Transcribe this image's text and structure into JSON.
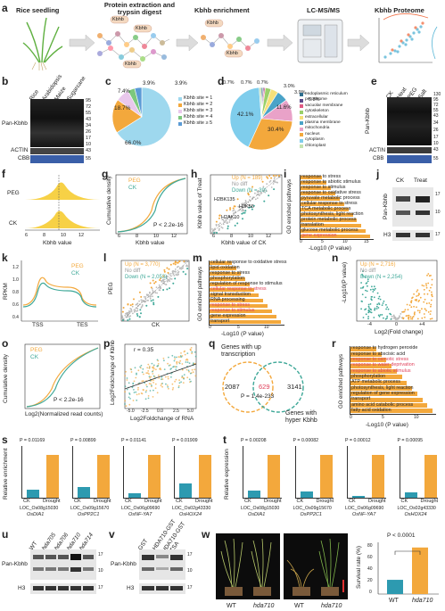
{
  "panels": {
    "a": {
      "letter": "a",
      "steps": [
        "Rice seedling",
        "Protein extraction and trypsin digest",
        "Kbhb enrichment",
        "LC-MS/MS",
        "Kbhb Proteome"
      ],
      "tag": "Kbhb"
    },
    "b": {
      "letter": "b",
      "lanes": [
        "Rice",
        "Arabidopsis",
        "Maize",
        "Sugarcane"
      ],
      "blot_label": "Pan-Kbhb",
      "actin": "ACTIN",
      "cbb": "CBB",
      "mw": [
        "95",
        "72",
        "55",
        "43",
        "34",
        "26",
        "17",
        "10",
        "43",
        "55"
      ]
    },
    "c": {
      "letter": "c",
      "legend": [
        "Kbhb site = 1",
        "Kbhb site = 2",
        "Kbhb site = 3",
        "Kbhb site = 4",
        "Kbhb site ≥ 5"
      ]
    },
    "d": {
      "letter": "d",
      "legend": [
        "endoplasmic reticulum",
        "peroxisome",
        "vacuolar membrane",
        "cytoskeleton",
        "extracellular",
        "plasma membrane",
        "mitochondria",
        "nucleus",
        "cytoplasm",
        "chloroplast"
      ]
    },
    "e": {
      "letter": "e",
      "lanes": [
        "CK",
        "Heat",
        "PEG",
        "Salt"
      ],
      "blot_label": "Pan-Kbhb",
      "actin": "ACTIN",
      "cbb": "CBB",
      "mw": [
        "130",
        "95",
        "72",
        "55",
        "43",
        "34",
        "26",
        "17",
        "10",
        "43",
        "55"
      ]
    },
    "f": {
      "letter": "f",
      "rows": [
        "PEG",
        "CK"
      ],
      "xlabel": "Kbhb value",
      "ticks": [
        "6",
        "8",
        "10",
        "12"
      ]
    },
    "g": {
      "letter": "g",
      "ylabel": "Cumulative density",
      "xlabel": "Kbhb value",
      "legend": [
        "PEG",
        "CK"
      ],
      "pval": "P < 2.2e-16",
      "xticks": [
        "6",
        "8",
        "10",
        "12"
      ],
      "yticks": [
        "0.0",
        "0.2",
        "0.4",
        "0.6",
        "0.8",
        "1.0"
      ]
    },
    "h": {
      "letter": "h",
      "ylabel": "Kbhb value of Treat",
      "xlabel": "Kbhb value of CK",
      "legend": [
        "Up (N = 189)",
        "No diff",
        "Down (N = 39)"
      ],
      "annotations": [
        "H2BK135",
        "H3K56",
        "H2AK10"
      ],
      "ticks": [
        "6",
        "8",
        "10",
        "12"
      ]
    },
    "i": {
      "letter": "i",
      "ylabel": "GO enriched pathways",
      "xlabel": "-Log10 (P value)",
      "terms": [
        "response to stress",
        "response to abiotic stimulus",
        "response to stimulus",
        "response to oxidative stress",
        "pyruvate metabolic process",
        "cellular response to stress",
        "TCA metabolic process",
        "photosynthesis, light reaction",
        "protein metabolic process",
        "translation",
        "glucose metabolic process",
        "gene expression"
      ],
      "ticks": [
        "0",
        "5",
        "10",
        "15"
      ]
    },
    "j": {
      "letter": "j",
      "lanes": [
        "CK",
        "Treat"
      ],
      "blot_label": "Pan-Kbhb",
      "h3": "H3",
      "mw": [
        "17",
        "10",
        "17"
      ]
    },
    "k": {
      "letter": "k",
      "ylabel": "RPKM",
      "legend": [
        "PEG",
        "CK"
      ],
      "xticks": [
        "TSS",
        "TES"
      ],
      "yticks": [
        "0.4",
        "0.6",
        "0.8",
        "1.0",
        "1.2"
      ]
    },
    "l": {
      "letter": "l",
      "ylabel": "PEG",
      "xlabel": "CK",
      "legend": [
        "Up (N = 3,770)",
        "No diff",
        "Down (N = 2,053)"
      ]
    },
    "m": {
      "letter": "m",
      "ylabel": "GO enriched pathways",
      "xlabel": "-Log10 (P value)",
      "terms": [
        "cellular response to oxidative stress",
        "lipid oxidation",
        "response to stress",
        "phosphorylation",
        "regulation of response to stimulus",
        "cellular response to stress",
        "signal transduction",
        "RNA processing",
        "response to stress",
        "response to stimulus",
        "gene expression",
        "transport"
      ],
      "ticks": [
        "0",
        "5",
        "10"
      ]
    },
    "n": {
      "letter": "n",
      "ylabel": "-Log10(P value)",
      "xlabel": "Log2(Fold change)",
      "legend": [
        "Up (N = 2,716)",
        "No diff",
        "Down (N = 2,254)"
      ],
      "ticks": [
        "-4",
        "0",
        "+4"
      ]
    },
    "o": {
      "letter": "o",
      "ylabel": "Cumulative density",
      "xlabel": "Log2(Normalized read counts)",
      "legend": [
        "PEG",
        "CK"
      ],
      "pval": "P < 2.2e-16"
    },
    "p": {
      "letter": "p",
      "ylabel": "Log2Foldchange of Kbhb",
      "xlabel": "Log2Foldchange of RNA",
      "r": "r = 0.35",
      "xticks": [
        "-5.0",
        "-2.5",
        "0.0",
        "2.5",
        "5.0"
      ]
    },
    "q": {
      "letter": "q",
      "top_label": "Genes with up transcription",
      "bottom_label": "Genes with hyper Kbhb",
      "left": "2087",
      "overlap": "629",
      "right": "3141",
      "pval": "P = 1.4e-233"
    },
    "r": {
      "letter": "r",
      "ylabel": "GO enriched pathways",
      "xlabel": "-Log10 (P value)",
      "terms": [
        "response to hydrogen peroxide",
        "response to abscisic acid",
        "response to osmotic stress",
        "response to water deprivation",
        "response to abiotic stimulus",
        "phosphorylation",
        "ATP metabolic process",
        "photosynthesis, light reaction",
        "regulation of gene expression",
        "transport",
        "amino acid catabolic process",
        "fatty acid oxidation"
      ],
      "ticks": [
        "0",
        "5",
        "10"
      ]
    },
    "s": {
      "letter": "s",
      "ylabel": "Relative enrichment",
      "groups": [
        "CK",
        "Drought"
      ],
      "charts": [
        {
          "p": "P = 0.01169",
          "loc": "LOC_Os08g15030",
          "gene": "OsDIA1"
        },
        {
          "p": "P = 0.00899",
          "loc": "LOC_Os09g15670",
          "gene": "OsPP2C1"
        },
        {
          "p": "P = 0.01141",
          "loc": "LOC_Os06g09690",
          "gene": "OsNF-YA7"
        },
        {
          "p": "P = 0.01909",
          "loc": "LOC_Os02g43330",
          "gene": "OsHOX24"
        }
      ]
    },
    "t": {
      "letter": "t",
      "ylabel": "Relative expression",
      "groups": [
        "CK",
        "Drought"
      ],
      "charts": [
        {
          "p": "P = 0.00208",
          "loc": "LOC_Os08g15030",
          "gene": "OsDIA1"
        },
        {
          "p": "P = 0.00082",
          "loc": "LOC_Os09g15670",
          "gene": "OsPP2C1"
        },
        {
          "p": "P = 0.00012",
          "loc": "LOC_Os06g09690",
          "gene": "OsNF-YA7"
        },
        {
          "p": "P = 0.00095",
          "loc": "LOC_Os02g43330",
          "gene": "OsHOX24"
        }
      ]
    },
    "u": {
      "letter": "u",
      "lanes": [
        "WT",
        "hda705",
        "hda706",
        "hda710",
        "hda714"
      ],
      "blot_label": "Pan-Kbhb",
      "h3": "H3",
      "mw": [
        "17",
        "10",
        "17"
      ]
    },
    "v": {
      "letter": "v",
      "lanes": [
        "GST",
        "HDA710-GST",
        "HDA710-GST + TSA"
      ],
      "blot_label": "Pan-Kbhb",
      "h3": "H3",
      "mw": [
        "17",
        "10",
        "17"
      ]
    },
    "w": {
      "letter": "w",
      "labels": [
        "WT",
        "hda710",
        "WT",
        "hda710"
      ],
      "ylabel": "Survival rate (%)",
      "pval": "P < 0.0001",
      "xlabels": [
        "WT",
        "hda710"
      ],
      "yticks": [
        "0",
        "20",
        "40",
        "60",
        "80"
      ]
    }
  },
  "chart_data": [
    {
      "type": "pie",
      "title": "c",
      "categories": [
        "Kbhb site = 1",
        "Kbhb site = 2",
        "Kbhb site = 3",
        "Kbhb site = 4",
        "Kbhb site ≥ 5"
      ],
      "values": [
        66.0,
        18.7,
        7.4,
        3.9,
        3.9
      ],
      "colors": [
        "#9ed8ee",
        "#f3a83c",
        "#e9c8ec",
        "#7dc87d",
        "#5b9bd5"
      ]
    },
    {
      "type": "pie",
      "title": "d",
      "categories": [
        "endoplasmic reticulum",
        "peroxisome",
        "vacuolar membrane",
        "cytoskeleton",
        "extracellular",
        "plasma membrane",
        "mitochondria",
        "nucleus",
        "cytoplasm",
        "chloroplast"
      ],
      "values": [
        0.7,
        0.7,
        0.7,
        3.0,
        3.9,
        5.8,
        11.6,
        30.4,
        42.1,
        1.1
      ],
      "labels_shown": [
        "0.7%",
        "0.7%",
        "0.7%",
        "3.0%",
        "3.9%",
        "5.8%",
        "11.6%",
        "30.4%",
        "42.1%"
      ]
    },
    {
      "type": "bar",
      "title": "s",
      "series": [
        {
          "name": "OsDIA1",
          "values": [
            0.1,
            0.52
          ]
        },
        {
          "name": "OsPP2C1",
          "values": [
            0.12,
            0.5
          ]
        },
        {
          "name": "OsNF-YA7",
          "values": [
            0.15,
            1.45
          ]
        },
        {
          "name": "OsHOX24",
          "values": [
            0.45,
            1.35
          ]
        }
      ],
      "categories": [
        "CK",
        "Drought"
      ]
    },
    {
      "type": "bar",
      "title": "t",
      "series": [
        {
          "name": "OsDIA1",
          "values": [
            0.05,
            0.32
          ]
        },
        {
          "name": "OsPP2C1",
          "values": [
            0.2,
            1.3
          ]
        },
        {
          "name": "OsNF-YA7",
          "values": [
            0.1,
            2.6
          ]
        },
        {
          "name": "OsHOX24",
          "values": [
            0.3,
            2.3
          ]
        }
      ],
      "categories": [
        "CK",
        "Drought"
      ]
    },
    {
      "type": "bar",
      "title": "w",
      "categories": [
        "WT",
        "hda710"
      ],
      "values": [
        22,
        72
      ],
      "ylim": [
        0,
        80
      ]
    }
  ]
}
